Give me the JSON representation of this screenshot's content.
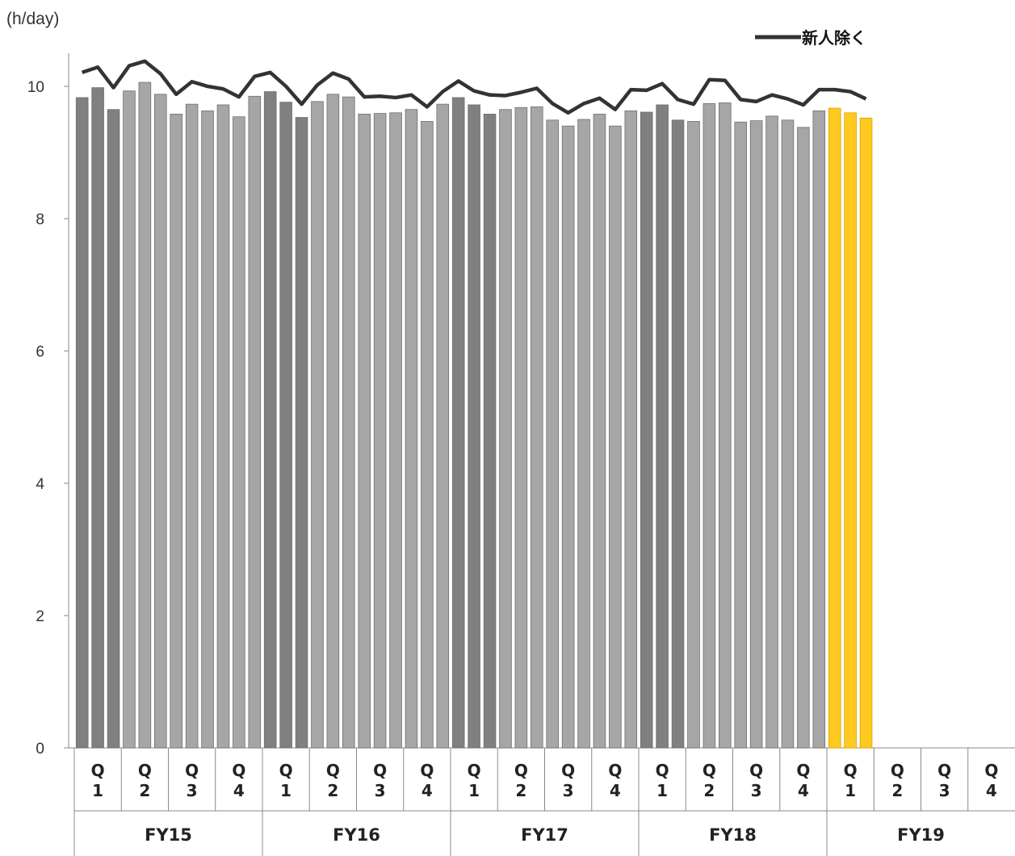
{
  "chart_data": {
    "type": "bar",
    "unit_label": "(h/day)",
    "title": "",
    "xlabel": "",
    "ylabel": "",
    "ylim": [
      0,
      10.5
    ],
    "yticks": [
      0,
      2,
      4,
      6,
      8,
      10
    ],
    "grid": false,
    "legend": {
      "position": "top-right",
      "entries": [
        "新人除く"
      ]
    },
    "fiscal_years": [
      {
        "label": "FY15",
        "quarters": [
          "Q\n1",
          "Q\n2",
          "Q\n3",
          "Q\n4"
        ]
      },
      {
        "label": "FY16",
        "quarters": [
          "Q\n1",
          "Q\n2",
          "Q\n3",
          "Q\n4"
        ]
      },
      {
        "label": "FY17",
        "quarters": [
          "Q\n1",
          "Q\n2",
          "Q\n3",
          "Q\n4"
        ]
      },
      {
        "label": "FY18",
        "quarters": [
          "Q\n1",
          "Q\n2",
          "Q\n3",
          "Q\n4"
        ]
      },
      {
        "label": "FY19",
        "quarters": [
          "Q\n1",
          "Q\n2",
          "Q\n3",
          "Q\n4"
        ]
      }
    ],
    "colors": {
      "q1": "#808080",
      "other": "#a6a6a6",
      "current": "#ffc91f",
      "line": "#333333"
    },
    "series": [
      {
        "type": "bar",
        "values": [
          9.83,
          9.98,
          9.65,
          9.93,
          10.06,
          9.88,
          9.58,
          9.73,
          9.63,
          9.72,
          9.54,
          9.85,
          9.92,
          9.76,
          9.53,
          9.77,
          9.88,
          9.84,
          9.58,
          9.59,
          9.6,
          9.65,
          9.47,
          9.73,
          9.83,
          9.72,
          9.58,
          9.65,
          9.68,
          9.69,
          9.49,
          9.4,
          9.5,
          9.58,
          9.4,
          9.63,
          9.61,
          9.72,
          9.49,
          9.47,
          9.74,
          9.75,
          9.46,
          9.48,
          9.55,
          9.49,
          9.38,
          9.63,
          9.67,
          9.6,
          9.52
        ],
        "color_groups": [
          "q1",
          "q1",
          "q1",
          "other",
          "other",
          "other",
          "other",
          "other",
          "other",
          "other",
          "other",
          "other",
          "q1",
          "q1",
          "q1",
          "other",
          "other",
          "other",
          "other",
          "other",
          "other",
          "other",
          "other",
          "other",
          "q1",
          "q1",
          "q1",
          "other",
          "other",
          "other",
          "other",
          "other",
          "other",
          "other",
          "other",
          "other",
          "q1",
          "q1",
          "q1",
          "other",
          "other",
          "other",
          "other",
          "other",
          "other",
          "other",
          "other",
          "other",
          "current",
          "current",
          "current"
        ]
      },
      {
        "type": "line",
        "name": "新人除く",
        "values": [
          10.21,
          10.29,
          9.98,
          10.31,
          10.38,
          10.19,
          9.88,
          10.07,
          10.0,
          9.96,
          9.84,
          10.15,
          10.21,
          10.0,
          9.73,
          10.02,
          10.2,
          10.11,
          9.84,
          9.85,
          9.83,
          9.87,
          9.69,
          9.92,
          10.08,
          9.93,
          9.87,
          9.86,
          9.91,
          9.97,
          9.74,
          9.6,
          9.74,
          9.82,
          9.65,
          9.95,
          9.94,
          10.04,
          9.8,
          9.73,
          10.1,
          10.09,
          9.8,
          9.77,
          9.87,
          9.81,
          9.72,
          9.95,
          9.95,
          9.92,
          9.81
        ]
      }
    ]
  }
}
